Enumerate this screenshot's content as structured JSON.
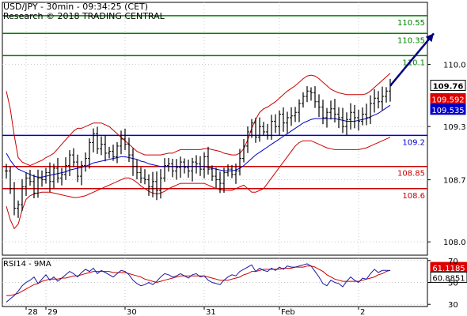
{
  "header": {
    "title": "USD/JPY - 30min - 09:34:25 (CET)",
    "subtitle": "Research © 2018 TRADING CENTRAL"
  },
  "colors": {
    "green": "#008000",
    "blue": "#0000cc",
    "red": "#cc0000",
    "arrow": "#000080",
    "price": "#000000",
    "rsi_line": "#1a1aa0",
    "rsi_ma": "#cc0000",
    "grid": "#c8c8c8"
  },
  "chart_data": [
    {
      "type": "candlestick",
      "ylim": [
        107.85,
        110.7
      ],
      "y_ticks": [
        "110.0",
        "109.3",
        "108.7",
        "108.0"
      ],
      "x_ticks": [
        "28",
        "29",
        "30",
        "31",
        "Feb",
        "2"
      ],
      "series": [
        {
          "name": "price",
          "values": [
            108.8,
            108.6,
            108.38,
            108.42,
            108.62,
            108.72,
            108.68,
            108.55,
            108.72,
            108.7,
            108.78,
            108.68,
            108.83,
            108.72,
            108.76,
            108.86,
            108.98,
            108.9,
            108.74,
            108.86,
            108.94,
            109.12,
            109.22,
            109.05,
            109.1,
            109.0,
            109.02,
            108.96,
            109.08,
            109.16,
            109.1,
            108.98,
            108.85,
            108.78,
            108.72,
            108.7,
            108.62,
            108.68,
            108.58,
            108.72,
            108.86,
            108.88,
            108.8,
            108.84,
            108.9,
            108.84,
            108.8,
            108.9,
            108.88,
            108.82,
            108.96,
            108.82,
            108.74,
            108.7,
            108.66,
            108.78,
            108.82,
            108.76,
            108.8,
            108.94,
            109.08,
            109.24,
            109.34,
            109.18,
            109.3,
            109.24,
            109.2,
            109.36,
            109.3,
            109.44,
            109.34,
            109.4,
            109.42,
            109.46,
            109.56,
            109.64,
            109.7,
            109.68,
            109.58,
            109.52,
            109.4,
            109.46,
            109.5,
            109.44,
            109.4,
            109.3,
            109.38,
            109.46,
            109.4,
            109.36,
            109.44,
            109.4,
            109.56,
            109.62,
            109.58,
            109.64,
            109.7,
            109.76
          ]
        },
        {
          "name": "bollinger_upper",
          "values": [
            109.7,
            109.5,
            109.2,
            108.95,
            108.9,
            108.88,
            108.86,
            108.88,
            108.9,
            108.92,
            108.95,
            108.97,
            109.0,
            109.05,
            109.1,
            109.15,
            109.2,
            109.25,
            109.28,
            109.28,
            109.3,
            109.32,
            109.34,
            109.34,
            109.34,
            109.32,
            109.3,
            109.26,
            109.22,
            109.18,
            109.14,
            109.1,
            109.06,
            109.02,
            109.0,
            108.98,
            108.98,
            108.98,
            108.98,
            108.98,
            108.99,
            109.0,
            109.0,
            109.02,
            109.04,
            109.04,
            109.04,
            109.04,
            109.04,
            109.04,
            109.05,
            109.05,
            109.04,
            109.03,
            109.02,
            109.0,
            108.99,
            108.98,
            108.98,
            109.0,
            109.05,
            109.15,
            109.28,
            109.38,
            109.46,
            109.5,
            109.52,
            109.55,
            109.58,
            109.62,
            109.66,
            109.7,
            109.73,
            109.76,
            109.8,
            109.84,
            109.87,
            109.88,
            109.87,
            109.84,
            109.8,
            109.76,
            109.72,
            109.7,
            109.68,
            109.67,
            109.66,
            109.66,
            109.66,
            109.66,
            109.66,
            109.67,
            109.7,
            109.74,
            109.78,
            109.82,
            109.86,
            109.9
          ]
        },
        {
          "name": "bollinger_middle",
          "values": [
            109.0,
            108.92,
            108.86,
            108.82,
            108.8,
            108.78,
            108.76,
            108.74,
            108.73,
            108.73,
            108.74,
            108.75,
            108.76,
            108.77,
            108.78,
            108.79,
            108.81,
            108.82,
            108.83,
            108.84,
            108.85,
            108.87,
            108.89,
            108.9,
            108.91,
            108.92,
            108.93,
            108.94,
            108.95,
            108.96,
            108.96,
            108.95,
            108.94,
            108.93,
            108.91,
            108.9,
            108.88,
            108.87,
            108.86,
            108.85,
            108.85,
            108.85,
            108.85,
            108.85,
            108.85,
            108.85,
            108.85,
            108.85,
            108.85,
            108.85,
            108.85,
            108.84,
            108.83,
            108.82,
            108.81,
            108.8,
            108.8,
            108.8,
            108.81,
            108.83,
            108.86,
            108.9,
            108.94,
            108.98,
            109.01,
            109.04,
            109.07,
            109.1,
            109.13,
            109.16,
            109.19,
            109.22,
            109.25,
            109.28,
            109.31,
            109.34,
            109.36,
            109.38,
            109.39,
            109.39,
            109.39,
            109.39,
            109.39,
            109.39,
            109.38,
            109.37,
            109.36,
            109.36,
            109.36,
            109.37,
            109.38,
            109.39,
            109.41,
            109.43,
            109.45,
            109.48,
            109.51,
            109.54
          ]
        },
        {
          "name": "bollinger_lower",
          "values": [
            108.4,
            108.25,
            108.15,
            108.2,
            108.36,
            108.48,
            108.52,
            108.54,
            108.55,
            108.56,
            108.56,
            108.56,
            108.55,
            108.54,
            108.53,
            108.52,
            108.51,
            108.5,
            108.5,
            108.51,
            108.52,
            108.54,
            108.56,
            108.58,
            108.6,
            108.62,
            108.64,
            108.66,
            108.68,
            108.7,
            108.72,
            108.72,
            108.7,
            108.67,
            108.63,
            108.6,
            108.57,
            108.55,
            108.54,
            108.55,
            108.57,
            108.6,
            108.62,
            108.64,
            108.66,
            108.66,
            108.66,
            108.66,
            108.66,
            108.66,
            108.66,
            108.64,
            108.62,
            108.6,
            108.59,
            108.58,
            108.58,
            108.58,
            108.6,
            108.62,
            108.64,
            108.6,
            108.56,
            108.56,
            108.58,
            108.6,
            108.66,
            108.72,
            108.78,
            108.84,
            108.9,
            108.96,
            109.02,
            109.08,
            109.12,
            109.14,
            109.14,
            109.14,
            109.12,
            109.1,
            109.08,
            109.06,
            109.05,
            109.04,
            109.04,
            109.04,
            109.04,
            109.04,
            109.04,
            109.04,
            109.05,
            109.06,
            109.08,
            109.1,
            109.12,
            109.14,
            109.16,
            109.18
          ]
        }
      ],
      "levels": [
        {
          "value": 110.55,
          "label": "110.55",
          "color": "green"
        },
        {
          "value": 110.35,
          "label": "110.35",
          "color": "green"
        },
        {
          "value": 110.1,
          "label": "110.1",
          "color": "green"
        },
        {
          "value": 109.2,
          "label": "109.2",
          "color": "blue"
        },
        {
          "value": 108.85,
          "label": "108.85",
          "color": "red"
        },
        {
          "value": 108.6,
          "label": "108.6",
          "color": "red"
        }
      ],
      "arrow": {
        "from": {
          "index": 97,
          "value": 109.76
        },
        "to": {
          "index": 108,
          "value": 110.35
        }
      },
      "price_tags": [
        {
          "value": 109.76,
          "label": "109.76",
          "style": "current"
        },
        {
          "value": 109.592,
          "label": "109.592",
          "style": "red"
        },
        {
          "value": 109.535,
          "label": "109.535",
          "style": "blue"
        }
      ]
    },
    {
      "type": "line",
      "title": "RSI14 - 9MA",
      "ylim": [
        28,
        72
      ],
      "y_ticks": [
        "70",
        "50",
        "30"
      ],
      "series": [
        {
          "name": "RSI14",
          "values": [
            32,
            35,
            38,
            42,
            47,
            50,
            52,
            55,
            49,
            53,
            57,
            52,
            55,
            51,
            54,
            57,
            60,
            58,
            55,
            59,
            62,
            60,
            63,
            58,
            61,
            59,
            57,
            55,
            58,
            61,
            60,
            57,
            52,
            49,
            47,
            48,
            50,
            48,
            51,
            55,
            58,
            57,
            55,
            56,
            58,
            56,
            54,
            57,
            58,
            55,
            56,
            52,
            50,
            49,
            48,
            52,
            55,
            57,
            56,
            60,
            62,
            64,
            66,
            60,
            63,
            61,
            60,
            63,
            61,
            64,
            62,
            65,
            64,
            64,
            65,
            66,
            67,
            65,
            60,
            55,
            49,
            47,
            52,
            50,
            49,
            46,
            51,
            55,
            52,
            50,
            54,
            53,
            58,
            62,
            59,
            61,
            61,
            60.89
          ]
        },
        {
          "name": "9MA",
          "values": [
            38,
            38,
            39,
            40,
            42,
            44,
            46,
            48,
            49,
            51,
            52,
            53,
            53,
            53,
            54,
            54,
            55,
            56,
            56,
            57,
            58,
            59,
            60,
            60,
            60,
            60,
            60,
            59,
            59,
            59,
            59,
            58,
            57,
            56,
            55,
            53,
            52,
            51,
            50,
            51,
            52,
            53,
            54,
            55,
            56,
            56,
            56,
            56,
            56,
            56,
            56,
            55,
            54,
            53,
            52,
            52,
            52,
            53,
            54,
            55,
            57,
            58,
            60,
            60,
            61,
            62,
            62,
            62,
            62,
            62,
            63,
            63,
            63,
            64,
            64,
            64,
            65,
            65,
            64,
            62,
            60,
            57,
            55,
            53,
            52,
            51,
            51,
            51,
            51,
            51,
            52,
            53,
            54,
            55,
            57,
            58,
            60,
            61.12
          ]
        }
      ],
      "value_tags": [
        {
          "value": 61.1185,
          "label": "61.1185",
          "style": "red"
        },
        {
          "value": 60.8851,
          "label": "60.8851",
          "style": "white"
        }
      ]
    }
  ]
}
